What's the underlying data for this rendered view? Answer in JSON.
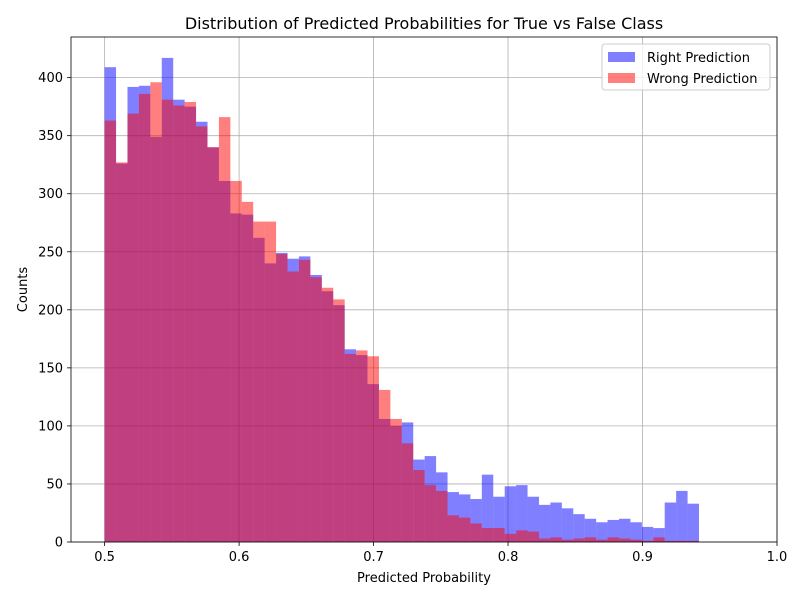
{
  "chart_data": {
    "type": "histogram",
    "title": "Distribution of Predicted Probabilities for True vs False Class",
    "xlabel": "Predicted Probability",
    "ylabel": "Counts",
    "xlim": [
      0.475,
      1.0
    ],
    "ylim": [
      0,
      435
    ],
    "xticks": [
      "0.5",
      "0.6",
      "0.7",
      "0.8",
      "0.9",
      "1.0"
    ],
    "yticks": [
      "0",
      "50",
      "100",
      "150",
      "200",
      "250",
      "300",
      "350",
      "400"
    ],
    "grid": true,
    "legend_position": "top-right",
    "series": [
      {
        "name": "Right Prediction",
        "color": "#0000ff",
        "opacity": 0.5,
        "bin_start": 0.5,
        "bin_width": 0.0085,
        "values": [
          409,
          326,
          392,
          393,
          349,
          417,
          381,
          375,
          362,
          340,
          311,
          283,
          282,
          262,
          240,
          249,
          244,
          246,
          230,
          216,
          204,
          166,
          161,
          136,
          106,
          100,
          103,
          71,
          74,
          60,
          43,
          41,
          37,
          58,
          39,
          48,
          49,
          39,
          32,
          34,
          29,
          24,
          20,
          17,
          19,
          20,
          17,
          13,
          12,
          34,
          44,
          33
        ]
      },
      {
        "name": "Wrong Prediction",
        "color": "#ff0000",
        "opacity": 0.5,
        "bin_start": 0.5,
        "bin_width": 0.0085,
        "values": [
          363,
          327,
          369,
          386,
          396,
          381,
          376,
          379,
          358,
          340,
          366,
          311,
          293,
          276,
          276,
          248,
          233,
          243,
          228,
          219,
          209,
          162,
          165,
          160,
          131,
          106,
          85,
          62,
          49,
          44,
          23,
          21,
          16,
          12,
          12,
          7,
          10,
          9,
          3,
          4,
          2,
          3,
          4,
          2,
          4,
          3,
          2,
          1,
          4,
          1,
          1,
          1
        ]
      }
    ]
  }
}
